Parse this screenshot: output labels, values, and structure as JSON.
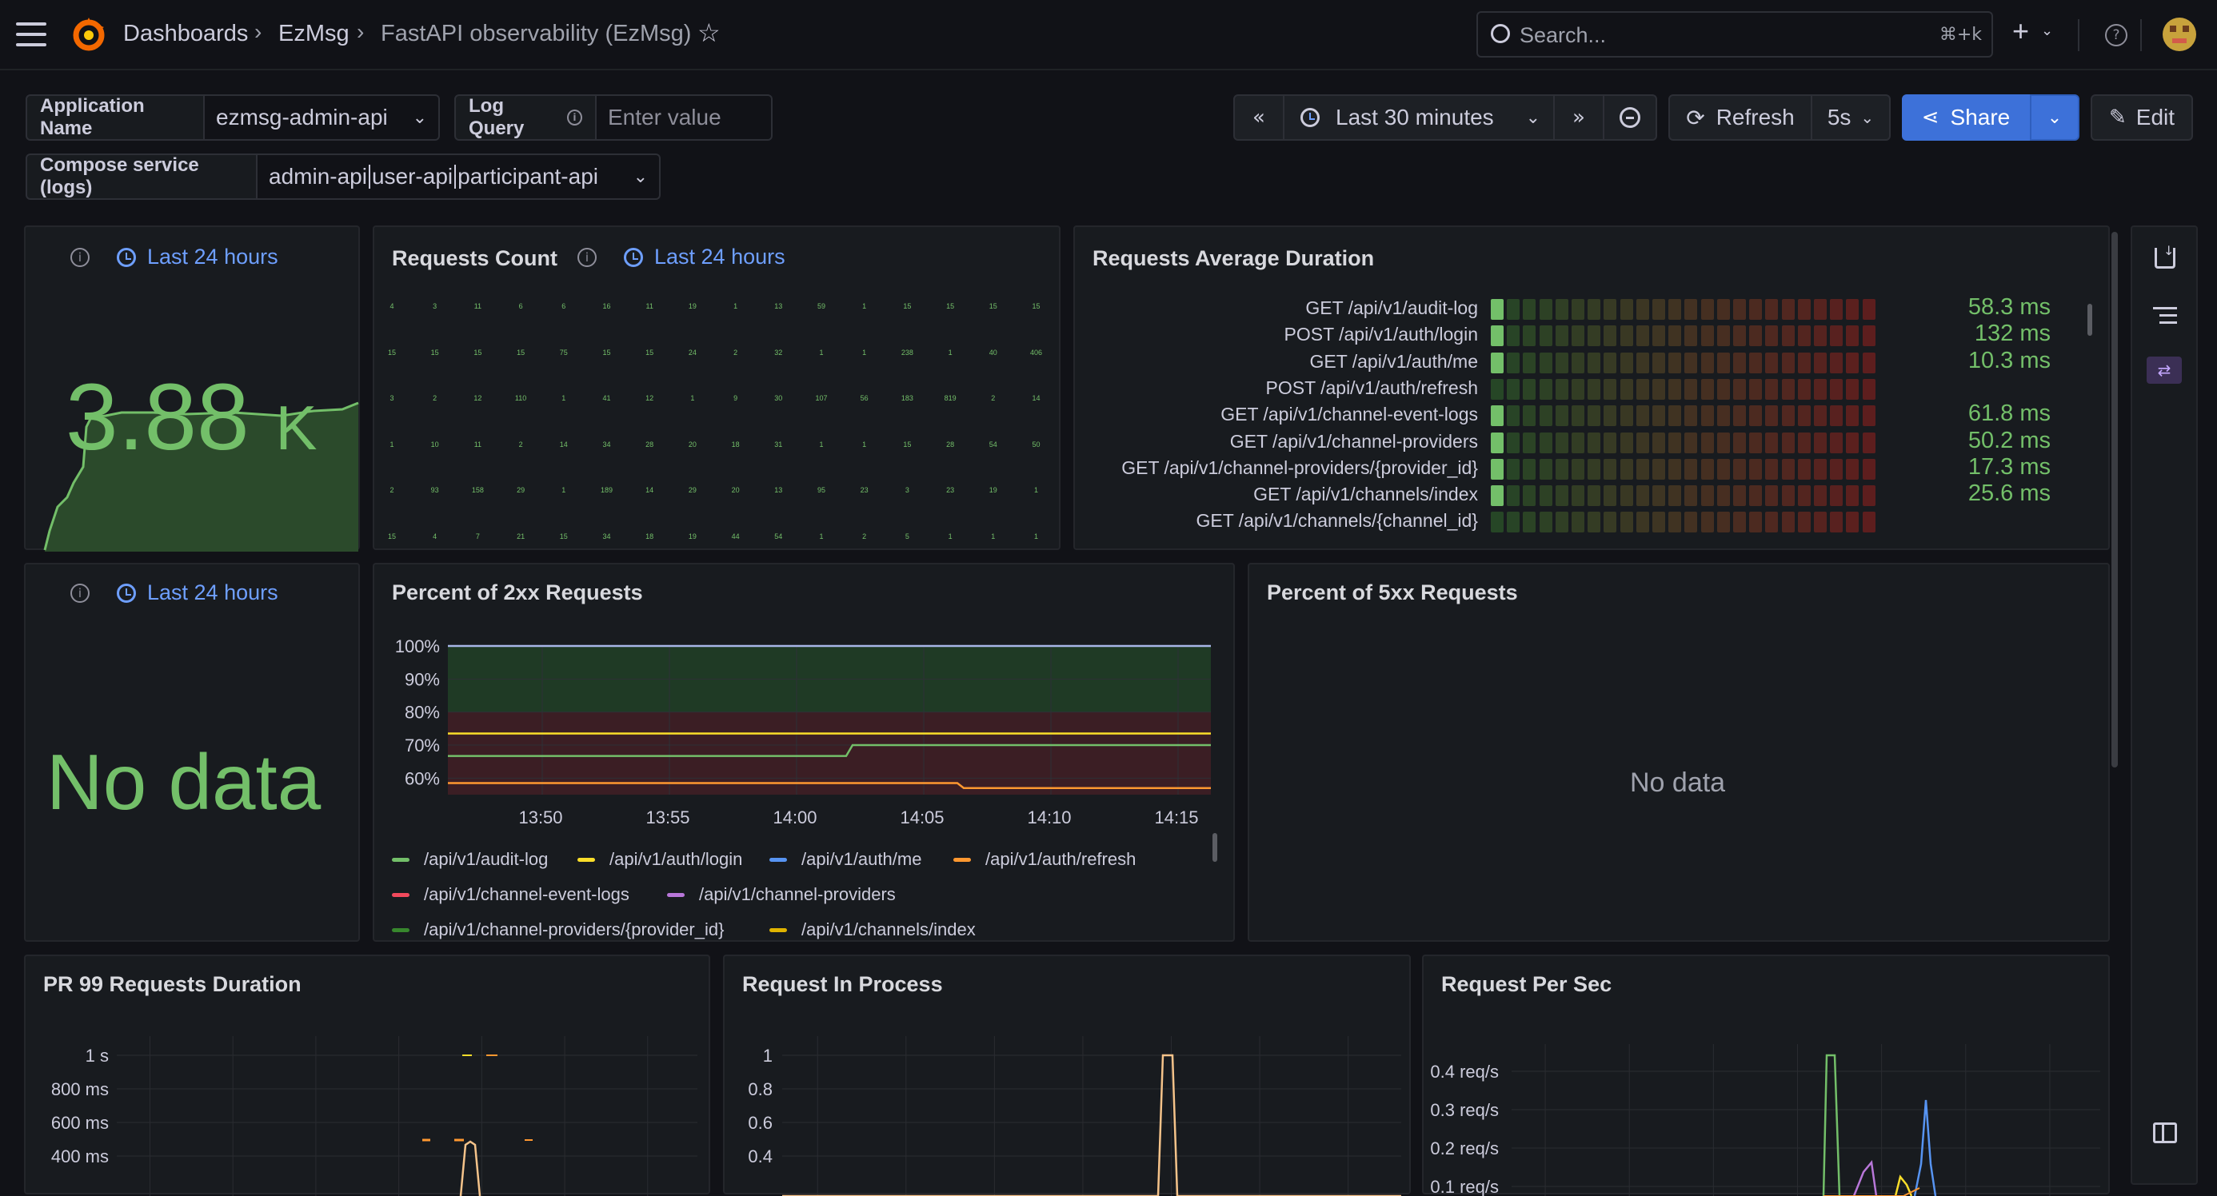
{
  "header": {
    "breadcrumbs": [
      "Dashboards",
      "EzMsg",
      "FastAPI observability (EzMsg)"
    ],
    "search_placeholder": "Search...",
    "search_shortcut": "⌘+k"
  },
  "variables": {
    "app_name_label": "Application Name",
    "app_name_value": "ezmsg-admin-api",
    "log_query_label": "Log Query",
    "log_query_placeholder": "Enter value",
    "compose_label": "Compose service (logs)",
    "compose_values": [
      "admin-api",
      "user-api",
      "participant-api"
    ]
  },
  "toolbar": {
    "time_range": "Last 30 minutes",
    "refresh": "Refresh",
    "interval": "5s",
    "share": "Share",
    "edit": "Edit"
  },
  "panels": {
    "total": {
      "time_override": "Last 24 hours",
      "value": "3.88",
      "unit": "K"
    },
    "requests_count": {
      "title": "Requests Count",
      "time_override": "Last 24 hours",
      "grid": [
        [
          "4",
          "3",
          "11",
          "6",
          "6",
          "16",
          "11",
          "19",
          "1",
          "13",
          "59",
          "1",
          "15",
          "15",
          "15",
          "15"
        ],
        [
          "15",
          "15",
          "15",
          "15",
          "75",
          "15",
          "15",
          "24",
          "2",
          "32",
          "1",
          "1",
          "238",
          "1",
          "40",
          "406"
        ],
        [
          "3",
          "2",
          "12",
          "110",
          "1",
          "41",
          "12",
          "1",
          "9",
          "30",
          "107",
          "56",
          "183",
          "819",
          "2",
          "14"
        ],
        [
          "1",
          "10",
          "11",
          "2",
          "14",
          "34",
          "28",
          "20",
          "18",
          "31",
          "1",
          "1",
          "15",
          "28",
          "54",
          "50"
        ],
        [
          "2",
          "93",
          "158",
          "29",
          "1",
          "189",
          "14",
          "29",
          "20",
          "13",
          "95",
          "23",
          "3",
          "23",
          "19",
          "1"
        ],
        [
          "15",
          "4",
          "7",
          "21",
          "15",
          "34",
          "18",
          "19",
          "44",
          "54",
          "1",
          "2",
          "5",
          "1",
          "1",
          "1"
        ]
      ]
    },
    "avg_duration": {
      "title": "Requests Average Duration",
      "rows": [
        {
          "label": "GET /api/v1/audit-log",
          "value": "58.3 ms",
          "level": 1
        },
        {
          "label": "POST /api/v1/auth/login",
          "value": "132 ms",
          "level": 1
        },
        {
          "label": "GET /api/v1/auth/me",
          "value": "10.3 ms",
          "level": 1
        },
        {
          "label": "POST /api/v1/auth/refresh",
          "value": "",
          "level": 0
        },
        {
          "label": "GET /api/v1/channel-event-logs",
          "value": "61.8 ms",
          "level": 1
        },
        {
          "label": "GET /api/v1/channel-providers",
          "value": "50.2 ms",
          "level": 1
        },
        {
          "label": "GET /api/v1/channel-providers/{provider_id}",
          "value": "17.3 ms",
          "level": 1
        },
        {
          "label": "GET /api/v1/channels/index",
          "value": "25.6 ms",
          "level": 1
        },
        {
          "label": "GET /api/v1/channels/{channel_id}",
          "value": "",
          "level": 0
        }
      ]
    },
    "errors": {
      "time_override": "Last 24 hours",
      "value": "No data"
    },
    "pct2xx": {
      "title": "Percent of 2xx Requests",
      "legend": [
        {
          "name": "/api/v1/audit-log",
          "color": "#73bf69"
        },
        {
          "name": "/api/v1/auth/login",
          "color": "#fade2a"
        },
        {
          "name": "/api/v1/auth/me",
          "color": "#5794f2"
        },
        {
          "name": "/api/v1/auth/refresh",
          "color": "#ff9830"
        },
        {
          "name": "/api/v1/channel-event-logs",
          "color": "#f2495c"
        },
        {
          "name": "/api/v1/channel-providers",
          "color": "#b877d9"
        },
        {
          "name": "/api/v1/channel-providers/{provider_id}",
          "color": "#37872d"
        },
        {
          "name": "/api/v1/channels/index",
          "color": "#e0b400"
        }
      ]
    },
    "pct5xx": {
      "title": "Percent of 5xx Requests",
      "value": "No data"
    },
    "pr99": {
      "title": "PR 99 Requests Duration"
    },
    "in_process": {
      "title": "Request In Process"
    },
    "per_sec": {
      "title": "Request Per Sec"
    }
  },
  "chart_data": [
    {
      "type": "line",
      "title": "Percent of 2xx Requests",
      "x": [
        "13:50",
        "13:55",
        "14:00",
        "14:05",
        "14:10",
        "14:15"
      ],
      "y_ticks": [
        "100%",
        "90%",
        "80%",
        "70%",
        "60%"
      ],
      "ylim": [
        55,
        100
      ],
      "series": [
        {
          "name": "/api/v1/auth/me",
          "values": [
            100,
            100,
            100,
            100,
            100,
            100
          ]
        },
        {
          "name": "/api/v1/auth/login",
          "values": [
            73.5,
            73.5,
            73.5,
            73.5,
            73.5,
            73.5
          ]
        },
        {
          "name": "/api/v1/audit-log",
          "values": [
            66.7,
            66.7,
            66.7,
            70,
            70,
            70
          ]
        },
        {
          "name": "/api/v1/auth/refresh",
          "values": [
            58.5,
            58.5,
            58.5,
            58.5,
            57,
            57
          ]
        }
      ]
    },
    {
      "type": "line",
      "title": "PR 99 Requests Duration",
      "y_ticks": [
        "1 s",
        "800 ms",
        "600 ms",
        "400 ms"
      ]
    },
    {
      "type": "line",
      "title": "Request In Process",
      "y_ticks": [
        "1",
        "0.8",
        "0.6",
        "0.4"
      ]
    },
    {
      "type": "line",
      "title": "Request Per Sec",
      "y_ticks": [
        "0.4 req/s",
        "0.3 req/s",
        "0.2 req/s",
        "0.1 req/s"
      ]
    }
  ]
}
